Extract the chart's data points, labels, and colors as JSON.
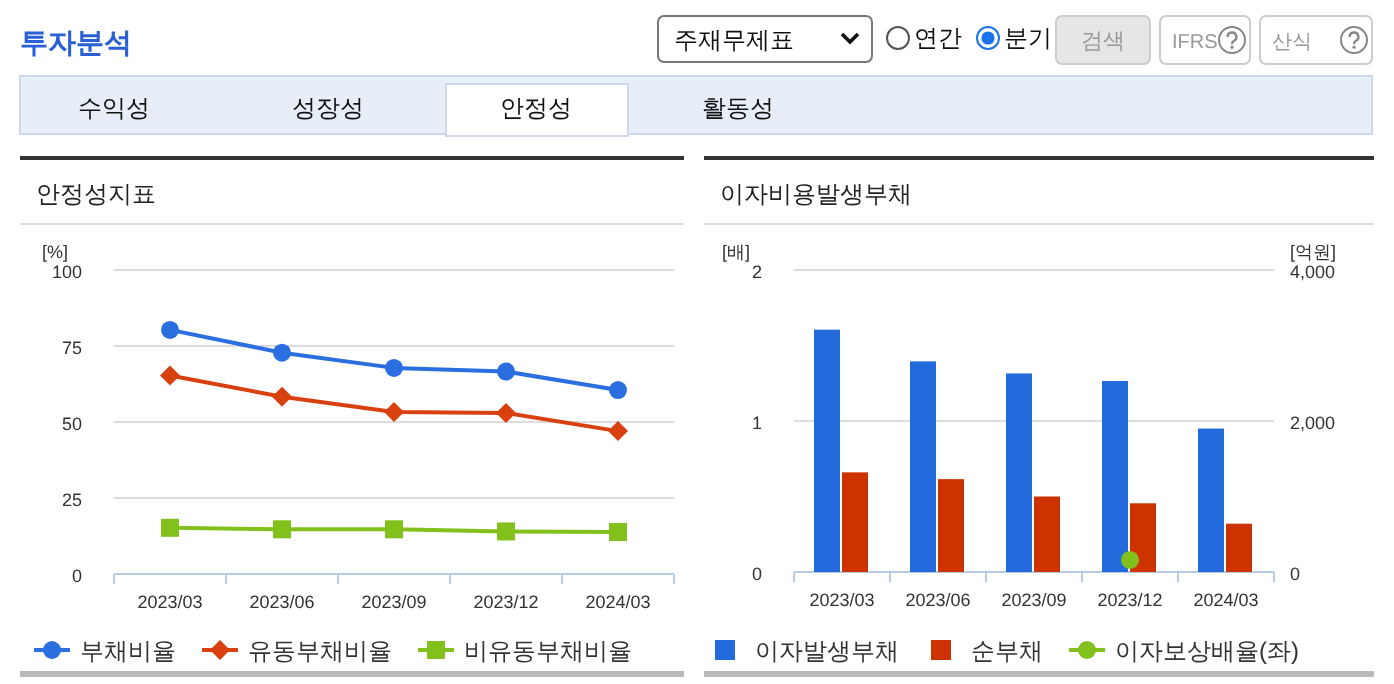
{
  "chart_data": [
    {
      "type": "other",
      "title": "투자분석",
      "annotations": [
        "주재무제표",
        "연간",
        "분기",
        "검색",
        "IFRS",
        "산식",
        "수익성",
        "성장성",
        "안정성",
        "활동성"
      ]
    },
    {
      "type": "line",
      "title": "안정성지표",
      "ylabel": "[%]",
      "categories": [
        "2023/03",
        "2023/06",
        "2023/09",
        "2023/12",
        "2024/03"
      ],
      "ylim": [
        0,
        100
      ],
      "yticks": [
        0,
        25,
        50,
        75,
        100
      ],
      "grid": "y",
      "legend": "bottom",
      "line_style": "solid",
      "series": [
        {
          "name": "부채비율",
          "color": "#2a6ee0",
          "marker": "circle",
          "values": [
            80.3,
            72.8,
            67.8,
            66.6,
            60.5
          ]
        },
        {
          "name": "유동부채비율",
          "color": "#d9400f",
          "marker": "diamond",
          "values": [
            65.3,
            58.3,
            53.3,
            53.0,
            47.0
          ]
        },
        {
          "name": "비유동부채비율",
          "color": "#82c11b",
          "marker": "square",
          "values": [
            15.2,
            14.7,
            14.7,
            14.0,
            13.8
          ]
        }
      ]
    },
    {
      "type": "bar",
      "title": "이자비용발생부채",
      "ylabel": "[배]",
      "y2label": "[억원]",
      "categories": [
        "2023/03",
        "2023/06",
        "2023/09",
        "2023/12",
        "2024/03"
      ],
      "ylim": [
        0,
        2
      ],
      "yticks": [
        0,
        1,
        2
      ],
      "y2lim": [
        0,
        4000
      ],
      "y2ticks": [
        {
          "value": 0,
          "label": "0"
        },
        {
          "value": 2000,
          "label": "2,000"
        },
        {
          "value": 4000,
          "label": "4,000"
        }
      ],
      "grid": "y",
      "legend": "bottom",
      "series": [
        {
          "name": "이자발생부채",
          "color": "#236bdc",
          "axis": "y2",
          "values": [
            3210,
            2790,
            2630,
            2530,
            1900
          ]
        },
        {
          "name": "순부채",
          "color": "#cc3300",
          "axis": "y2",
          "values": [
            1320,
            1230,
            1000,
            910,
            640
          ]
        },
        {
          "name": "이자보상배율(좌)",
          "type": "line",
          "marker": "circle",
          "color": "#82c11b",
          "values": [
            null,
            null,
            null,
            0.08,
            null
          ]
        }
      ]
    }
  ]
}
